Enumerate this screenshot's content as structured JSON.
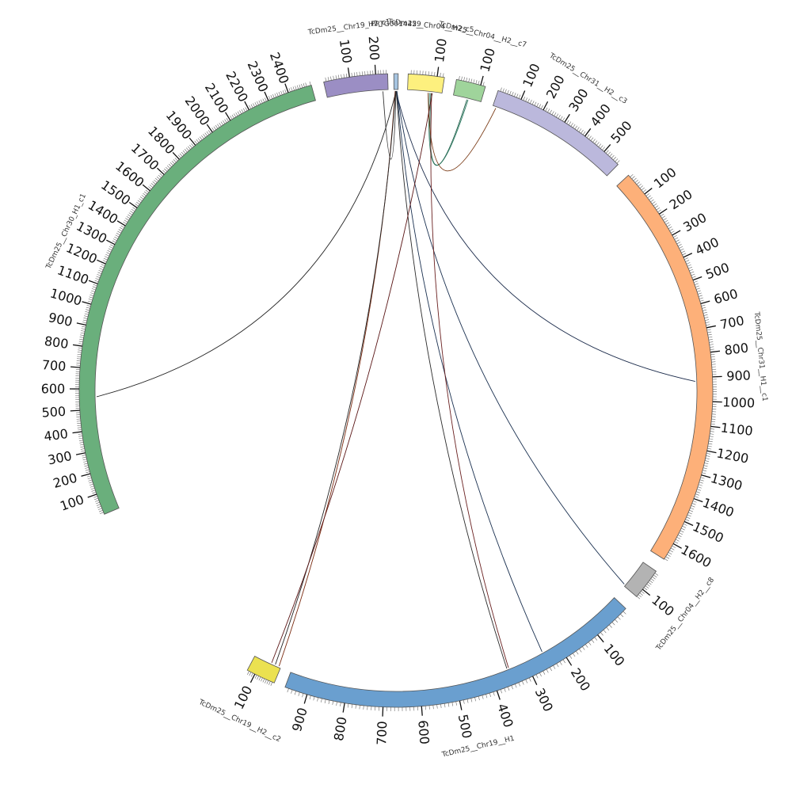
{
  "diagram": {
    "type": "circos",
    "segments": [
      {
        "id": "c30_H1_c1",
        "label": "TcDm25__Chr30_H1_c1",
        "length": 2513,
        "color": "#6aaf7c",
        "tick_labels": [
          "100",
          "200",
          "300",
          "400",
          "500",
          "600",
          "700",
          "800",
          "900",
          "1000",
          "1100",
          "1200",
          "1300",
          "1400",
          "1500",
          "1600",
          "1700",
          "1800",
          "1900",
          "2000",
          "2100",
          "2200",
          "2300",
          "2400"
        ]
      },
      {
        "id": "c19_H2_c1",
        "label": "TcDm25__Chr19_H2_c1",
        "length": 246,
        "color": "#9b8ec4",
        "tick_labels": [
          "100",
          "200"
        ]
      },
      {
        "id": "ptg",
        "label": "PRTG0014429",
        "length": 10,
        "color": "#a6c4e0",
        "tick_labels": []
      },
      {
        "id": "c04_H2_c5",
        "label": "TcDm25__Chr04__H2_c5",
        "length": 125,
        "color": "#fdf07e",
        "tick_labels": [
          "100"
        ]
      },
      {
        "id": "c04_H2_c7",
        "label": "TcDm25__Chr04__H2__c7",
        "length": 120,
        "color": "#9fd49b",
        "tick_labels": [
          "100"
        ]
      },
      {
        "id": "c31_H2_c3",
        "label": "TcDm25__Chr31__H2__c3",
        "length": 577,
        "color": "#bbb8dc",
        "tick_labels": [
          "100",
          "200",
          "300",
          "400",
          "500"
        ]
      },
      {
        "id": "c31_H1_c1",
        "label": "TcDm25__Chr31__H1__c1",
        "length": 1673,
        "color": "#fdb079",
        "tick_labels": [
          "100",
          "200",
          "300",
          "400",
          "500",
          "600",
          "700",
          "800",
          "900",
          "1000",
          "1100",
          "1200",
          "1300",
          "1400",
          "1500",
          "1600"
        ]
      },
      {
        "id": "c04_H2_c8",
        "label": "TcDm25__Chr04__H2__c8",
        "length": 142,
        "color": "#b3b3b3",
        "tick_labels": [
          "100"
        ]
      },
      {
        "id": "c19_H1",
        "label": "TcDm25__Chr19__H1",
        "length": 960,
        "color": "#6a9fcf",
        "tick_labels": [
          "100",
          "200",
          "300",
          "400",
          "500",
          "600",
          "700",
          "800",
          "900"
        ]
      },
      {
        "id": "c19_H2_c2",
        "label": "TcDm25__Chr19__H2__c2",
        "length": 140,
        "color": "#ebe150",
        "tick_labels": [
          "100"
        ]
      }
    ],
    "links": [
      {
        "from": "ptg",
        "from_pos": 5,
        "to": "c30_H1_c1",
        "to_pos": 562,
        "color": "#222222"
      },
      {
        "from": "ptg",
        "from_pos": 5,
        "to": "c31_H1_c1",
        "to_pos": 916,
        "color": "#1a2a4a"
      },
      {
        "from": "ptg",
        "from_pos": 3,
        "to": "c19_H2_c2",
        "to_pos": 10,
        "color": "#7a2a10"
      },
      {
        "from": "ptg",
        "from_pos": 4,
        "to": "c19_H2_c2",
        "to_pos": 30,
        "color": "#222222"
      },
      {
        "from": "ptg",
        "from_pos": 6,
        "to": "c19_H1",
        "to_pos": 355,
        "color": "#2a2a2a"
      },
      {
        "from": "ptg",
        "from_pos": 7,
        "to": "c19_H1",
        "to_pos": 248,
        "color": "#1a3050"
      },
      {
        "from": "ptg",
        "from_pos": 7,
        "to": "c04_H2_c8",
        "to_pos": 135,
        "color": "#1a3050"
      },
      {
        "from": "ptg",
        "from_pos": 5,
        "to": "c19_H2_c1",
        "to_pos": 225,
        "color": "#333333"
      },
      {
        "from": "c04_H2_c5",
        "from_pos": 85,
        "to": "c04_H2_c7",
        "to_pos": 60,
        "color": "#1f5f4a"
      },
      {
        "from": "c04_H2_c5",
        "from_pos": 80,
        "to": "c04_H2_c7",
        "to_pos": 65,
        "color": "#2a7a60"
      },
      {
        "from": "c04_H2_c5",
        "from_pos": 75,
        "to": "c31_H2_c3",
        "to_pos": 15,
        "color": "#7a3a15"
      },
      {
        "from": "c04_H2_c5",
        "from_pos": 88,
        "to": "c19_H1",
        "to_pos": 350,
        "color": "#6a2020"
      },
      {
        "from": "c04_H2_c5",
        "from_pos": 90,
        "to": "c19_H2_c2",
        "to_pos": 50,
        "color": "#5a1515"
      }
    ]
  }
}
